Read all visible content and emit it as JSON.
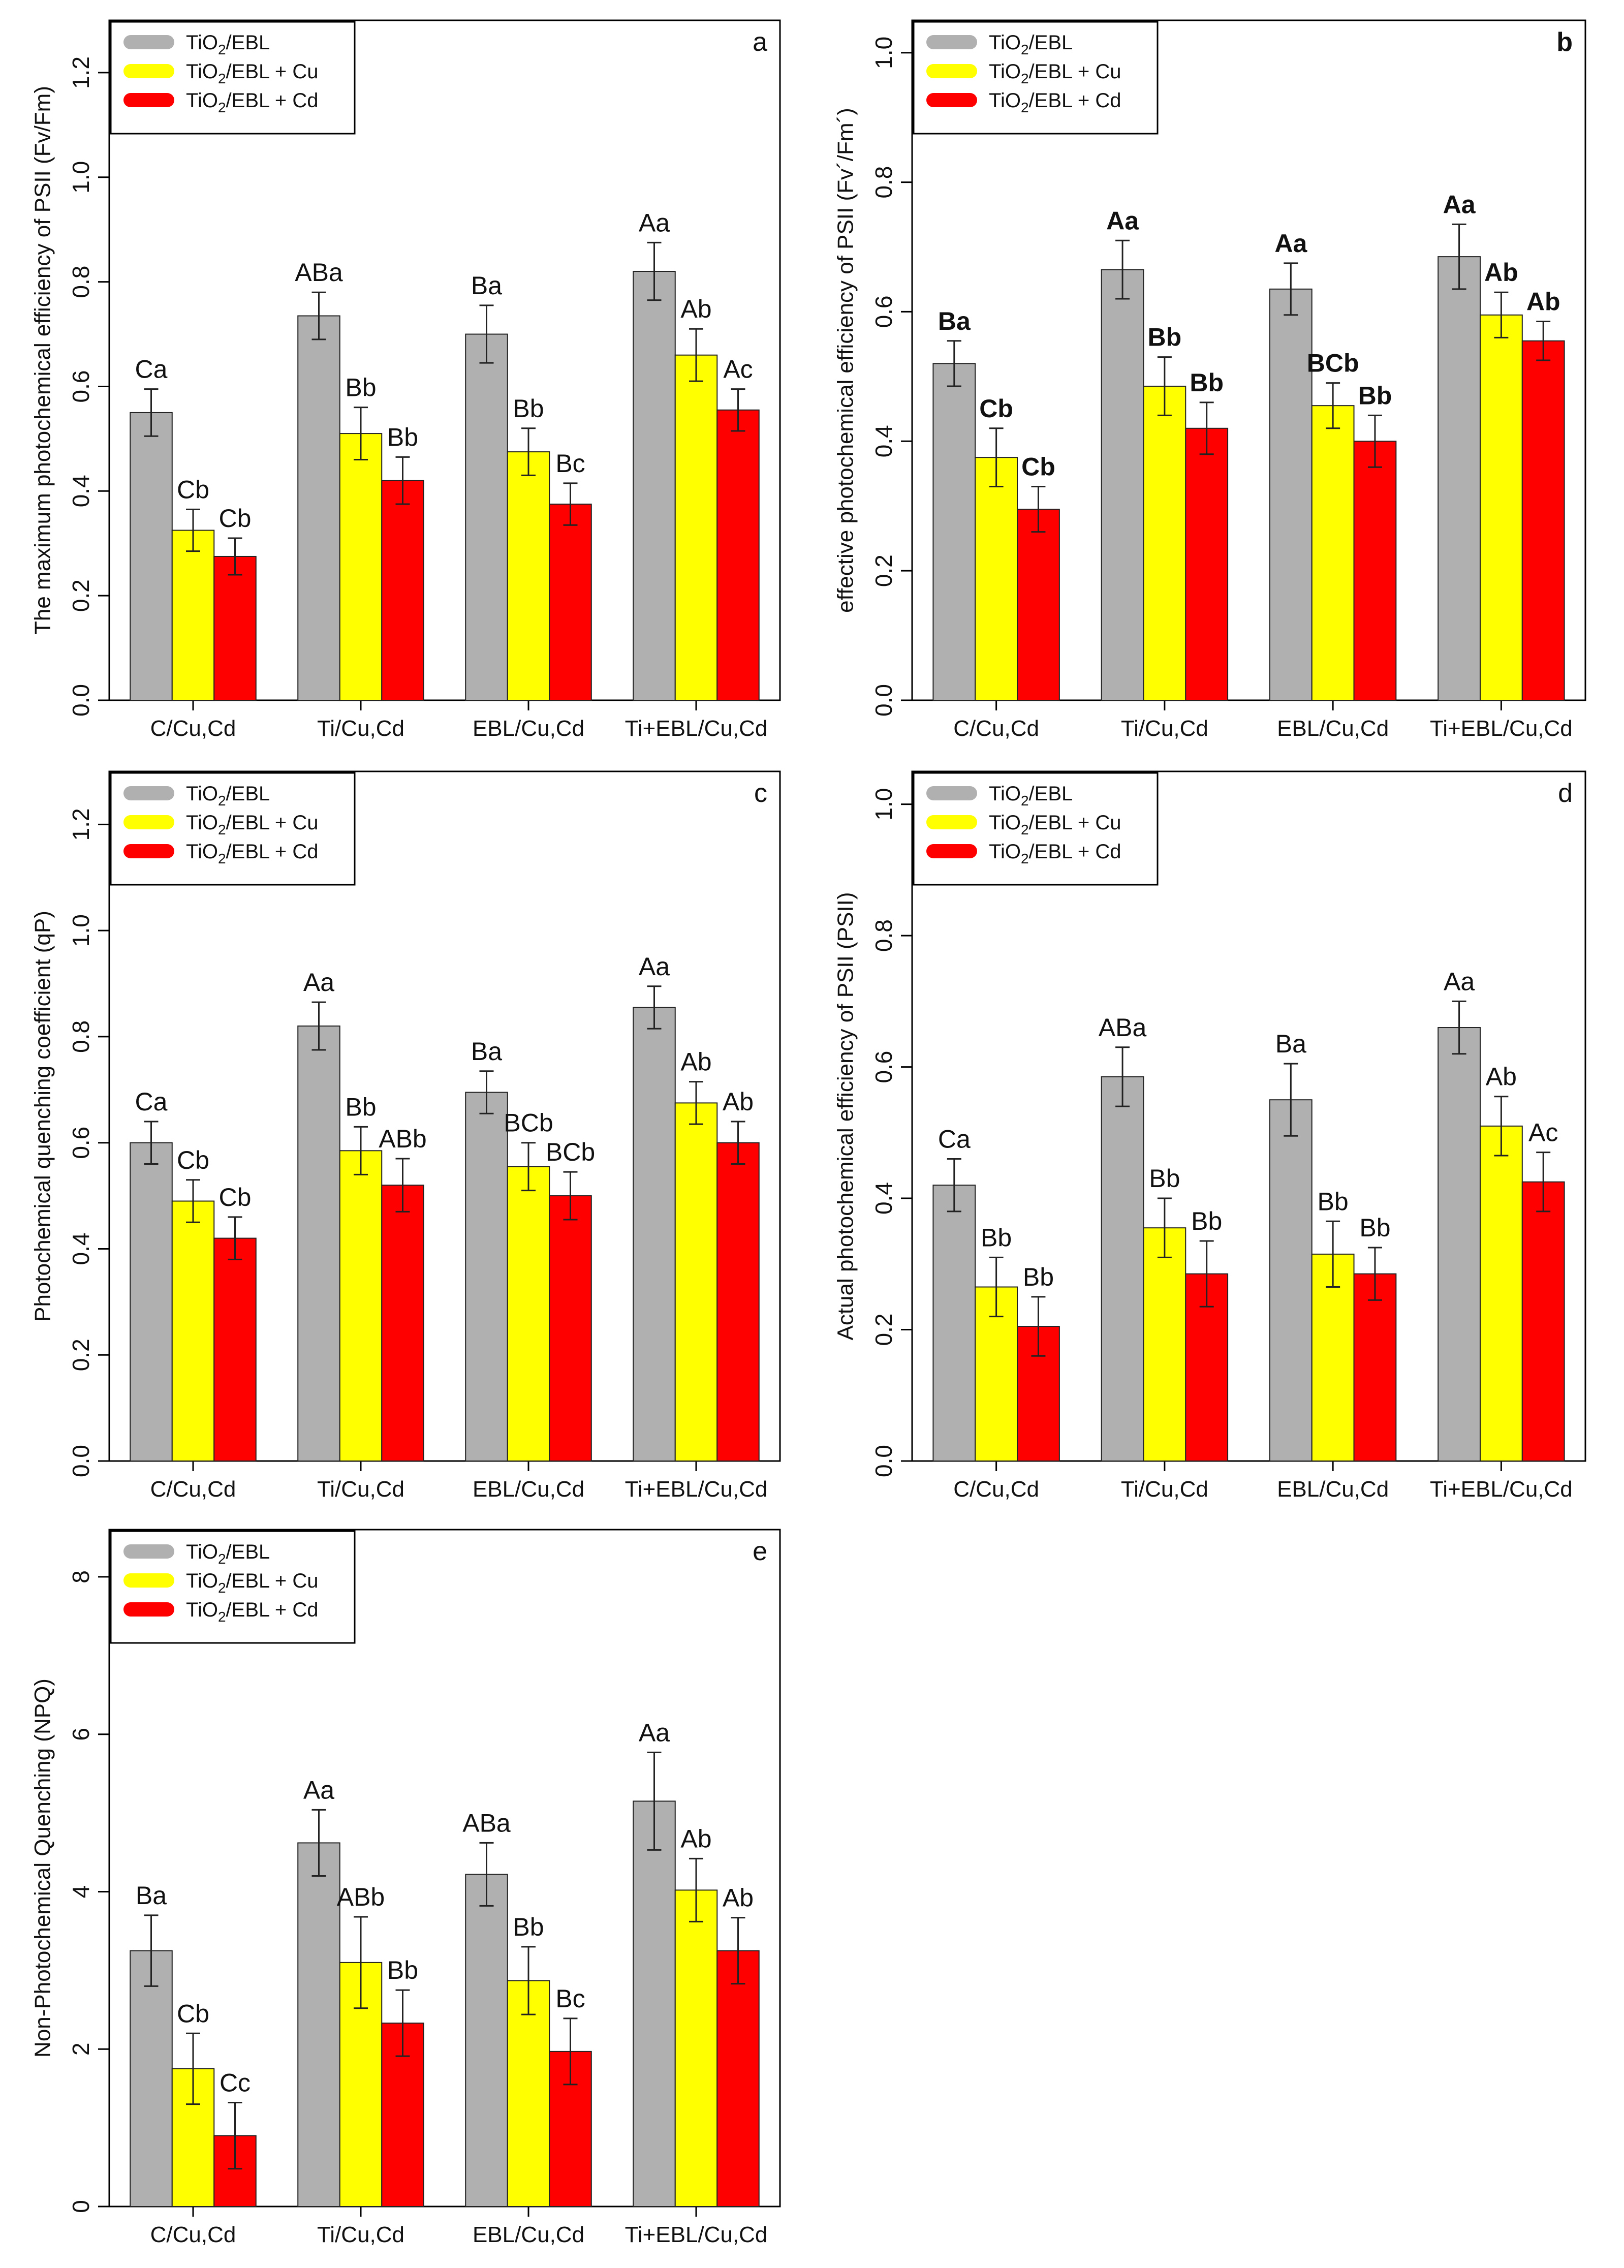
{
  "colors": {
    "gray": "#b0b0b0",
    "yellow": "#ffff00",
    "red": "#ff0000",
    "axis": "#000000"
  },
  "legend": {
    "series": [
      {
        "base": "TiO",
        "sub": "2",
        "tail": "/EBL"
      },
      {
        "base": "TiO",
        "sub": "2",
        "tail": "/EBL + Cu"
      },
      {
        "base": "TiO",
        "sub": "2",
        "tail": "/EBL + Cd"
      }
    ]
  },
  "chart_data": [
    {
      "id": "a",
      "type": "bar",
      "panel_label": "a",
      "ylabel": "The maximum photochemical efficiency of PSII (Fv/Fm)",
      "categories": [
        "C/Cu,Cd",
        "Ti/Cu,Cd",
        "EBL/Cu,Cd",
        "Ti+EBL/Cu,Cd"
      ],
      "ylim": [
        0,
        1.3
      ],
      "yticks": [
        0.0,
        0.2,
        0.4,
        0.6,
        0.8,
        1.0,
        1.2
      ],
      "ytick_labels": [
        "0.0",
        "0.2",
        "0.4",
        "0.6",
        "0.8",
        "1.0",
        "1.2"
      ],
      "bold_labels": false,
      "series": [
        {
          "name": "TiO2/EBL",
          "values": [
            0.55,
            0.735,
            0.7,
            0.82
          ],
          "errors": [
            0.045,
            0.045,
            0.055,
            0.055
          ],
          "labels": [
            "Ca",
            "ABa",
            "Ba",
            "Aa"
          ]
        },
        {
          "name": "TiO2/EBL + Cu",
          "values": [
            0.325,
            0.51,
            0.475,
            0.66
          ],
          "errors": [
            0.04,
            0.05,
            0.045,
            0.05
          ],
          "labels": [
            "Cb",
            "Bb",
            "Bb",
            "Ab"
          ]
        },
        {
          "name": "TiO2/EBL + Cd",
          "values": [
            0.275,
            0.42,
            0.375,
            0.555
          ],
          "errors": [
            0.035,
            0.045,
            0.04,
            0.04
          ],
          "labels": [
            "Cb",
            "Bb",
            "Bc",
            "Ac"
          ]
        }
      ]
    },
    {
      "id": "b",
      "type": "bar",
      "panel_label": "b",
      "ylabel": "effective photochemical efficiency of PSII (Fv´/Fm´)",
      "categories": [
        "C/Cu,Cd",
        "Ti/Cu,Cd",
        "EBL/Cu,Cd",
        "Ti+EBL/Cu,Cd"
      ],
      "ylim": [
        0,
        1.05
      ],
      "yticks": [
        0.0,
        0.2,
        0.4,
        0.6,
        0.8,
        1.0
      ],
      "ytick_labels": [
        "0.0",
        "0.2",
        "0.4",
        "0.6",
        "0.8",
        "1.0"
      ],
      "bold_labels": true,
      "series": [
        {
          "name": "TiO2/EBL",
          "values": [
            0.52,
            0.665,
            0.635,
            0.685
          ],
          "errors": [
            0.035,
            0.045,
            0.04,
            0.05
          ],
          "labels": [
            "Ba",
            "Aa",
            "Aa",
            "Aa"
          ]
        },
        {
          "name": "TiO2/EBL + Cu",
          "values": [
            0.375,
            0.485,
            0.455,
            0.595
          ],
          "errors": [
            0.045,
            0.045,
            0.035,
            0.035
          ],
          "labels": [
            "Cb",
            "Bb",
            "BCb",
            "Ab"
          ]
        },
        {
          "name": "TiO2/EBL + Cd",
          "values": [
            0.295,
            0.42,
            0.4,
            0.555
          ],
          "errors": [
            0.035,
            0.04,
            0.04,
            0.03
          ],
          "labels": [
            "Cb",
            "Bb",
            "Bb",
            "Ab"
          ]
        }
      ]
    },
    {
      "id": "c",
      "type": "bar",
      "panel_label": "c",
      "ylabel": "Photochemical quenching coefficient (qP)",
      "categories": [
        "C/Cu,Cd",
        "Ti/Cu,Cd",
        "EBL/Cu,Cd",
        "Ti+EBL/Cu,Cd"
      ],
      "ylim": [
        0,
        1.3
      ],
      "yticks": [
        0.0,
        0.2,
        0.4,
        0.6,
        0.8,
        1.0,
        1.2
      ],
      "ytick_labels": [
        "0.0",
        "0.2",
        "0.4",
        "0.6",
        "0.8",
        "1.0",
        "1.2"
      ],
      "bold_labels": false,
      "series": [
        {
          "name": "TiO2/EBL",
          "values": [
            0.6,
            0.82,
            0.695,
            0.855
          ],
          "errors": [
            0.04,
            0.045,
            0.04,
            0.04
          ],
          "labels": [
            "Ca",
            "Aa",
            "Ba",
            "Aa"
          ]
        },
        {
          "name": "TiO2/EBL + Cu",
          "values": [
            0.49,
            0.585,
            0.555,
            0.675
          ],
          "errors": [
            0.04,
            0.045,
            0.045,
            0.04
          ],
          "labels": [
            "Cb",
            "Bb",
            "BCb",
            "Ab"
          ]
        },
        {
          "name": "TiO2/EBL + Cd",
          "values": [
            0.42,
            0.52,
            0.5,
            0.6
          ],
          "errors": [
            0.04,
            0.05,
            0.045,
            0.04
          ],
          "labels": [
            "Cb",
            "ABb",
            "BCb",
            "Ab"
          ]
        }
      ]
    },
    {
      "id": "d",
      "type": "bar",
      "panel_label": "d",
      "ylabel": "Actual photochemical efficiency of PSII (PSII)",
      "categories": [
        "C/Cu,Cd",
        "Ti/Cu,Cd",
        "EBL/Cu,Cd",
        "Ti+EBL/Cu,Cd"
      ],
      "ylim": [
        0,
        1.05
      ],
      "yticks": [
        0.0,
        0.2,
        0.4,
        0.6,
        0.8,
        1.0
      ],
      "ytick_labels": [
        "0.0",
        "0.2",
        "0.4",
        "0.6",
        "0.8",
        "1.0"
      ],
      "bold_labels": false,
      "series": [
        {
          "name": "TiO2/EBL",
          "values": [
            0.42,
            0.585,
            0.55,
            0.66
          ],
          "errors": [
            0.04,
            0.045,
            0.055,
            0.04
          ],
          "labels": [
            "Ca",
            "ABa",
            "Ba",
            "Aa"
          ]
        },
        {
          "name": "TiO2/EBL + Cu",
          "values": [
            0.265,
            0.355,
            0.315,
            0.51
          ],
          "errors": [
            0.045,
            0.045,
            0.05,
            0.045
          ],
          "labels": [
            "Bb",
            "Bb",
            "Bb",
            "Ab"
          ]
        },
        {
          "name": "TiO2/EBL + Cd",
          "values": [
            0.205,
            0.285,
            0.285,
            0.425
          ],
          "errors": [
            0.045,
            0.05,
            0.04,
            0.045
          ],
          "labels": [
            "Bb",
            "Bb",
            "Bb",
            "Ac"
          ]
        }
      ]
    },
    {
      "id": "e",
      "type": "bar",
      "panel_label": "e",
      "ylabel": "Non-Photochemical Quenching (NPQ)",
      "categories": [
        "C/Cu,Cd",
        "Ti/Cu,Cd",
        "EBL/Cu,Cd",
        "Ti+EBL/Cu,Cd"
      ],
      "ylim": [
        0,
        8.6
      ],
      "yticks": [
        0,
        2,
        4,
        6,
        8
      ],
      "ytick_labels": [
        "0",
        "2",
        "4",
        "6",
        "8"
      ],
      "bold_labels": false,
      "series": [
        {
          "name": "TiO2/EBL",
          "values": [
            3.25,
            4.62,
            4.22,
            5.15
          ],
          "errors": [
            0.45,
            0.42,
            0.4,
            0.62
          ],
          "labels": [
            "Ba",
            "Aa",
            "ABa",
            "Aa"
          ]
        },
        {
          "name": "TiO2/EBL + Cu",
          "values": [
            1.75,
            3.1,
            2.87,
            4.02
          ],
          "errors": [
            0.45,
            0.58,
            0.43,
            0.4
          ],
          "labels": [
            "Cb",
            "ABb",
            "Bb",
            "Ab"
          ]
        },
        {
          "name": "TiO2/EBL + Cd",
          "values": [
            0.9,
            2.33,
            1.97,
            3.25
          ],
          "errors": [
            0.42,
            0.42,
            0.42,
            0.42
          ],
          "labels": [
            "Cc",
            "Bb",
            "Bc",
            "Ab"
          ]
        }
      ]
    }
  ]
}
